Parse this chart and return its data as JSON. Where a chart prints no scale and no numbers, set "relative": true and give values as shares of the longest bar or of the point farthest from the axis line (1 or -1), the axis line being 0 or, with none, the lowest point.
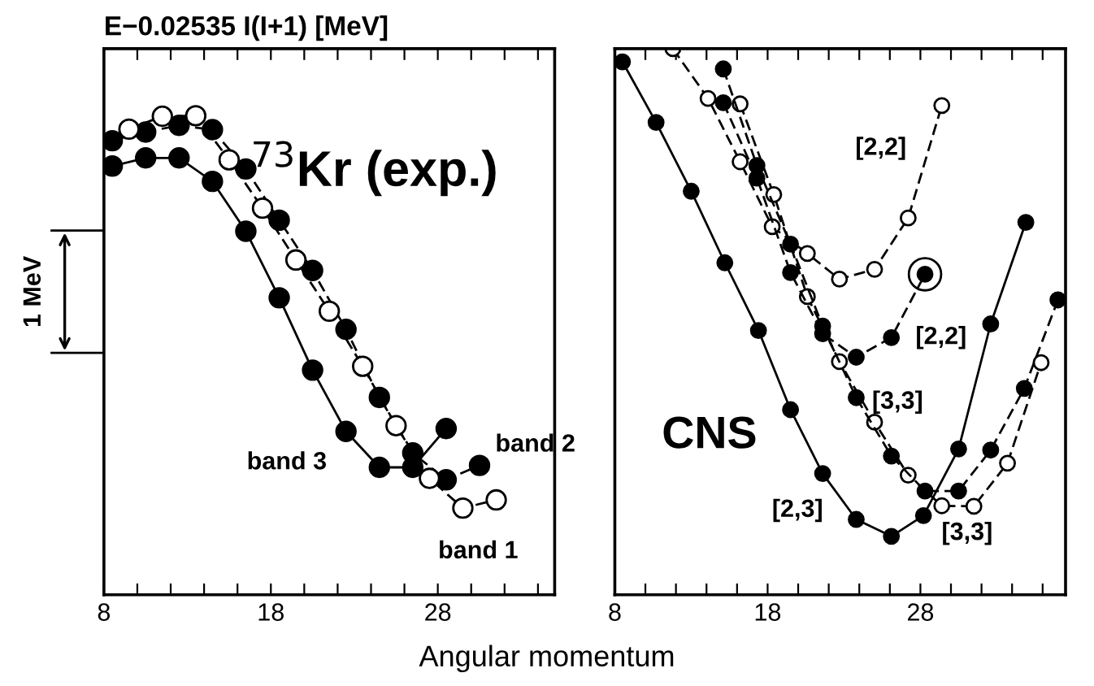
{
  "chart_data": [
    {
      "type": "line",
      "relative": true,
      "ylabel": "E−0.02535 I(I+1) [MeV]",
      "xlabel": "Angular momentum",
      "xlim": [
        8,
        35
      ],
      "xticks": [
        8,
        {
          "value": 10,
          "label": null
        },
        {
          "value": 12,
          "label": null
        },
        {
          "value": 14,
          "label": null
        },
        {
          "value": 16,
          "label": null
        },
        18,
        {
          "value": 20,
          "label": null
        },
        {
          "value": 22,
          "label": null
        },
        {
          "value": 24,
          "label": null
        },
        {
          "value": 26,
          "label": null
        },
        28,
        {
          "value": 30,
          "label": null
        },
        {
          "value": 32,
          "label": null
        },
        {
          "value": 34,
          "label": null
        }
      ],
      "tick_labels": "x",
      "marker": "circle",
      "grid": false,
      "legend": false,
      "annotations": [
        "$^{73}$Kr (exp.)",
        "1 MeV"
      ],
      "series": [
        {
          "name": "band 3",
          "color": "#000000",
          "line_style": "solid",
          "x": [
            8.5,
            10.5,
            12.5,
            14.5,
            16.5,
            18.5,
            20.5,
            22.5,
            24.5,
            26.5,
            28.5
          ],
          "values": [
            0.895,
            0.912,
            0.912,
            0.863,
            0.759,
            0.62,
            0.469,
            0.341,
            0.266,
            0.266,
            0.347
          ]
        },
        {
          "name": "band 2",
          "color": "#000000",
          "line_style": "dashed",
          "x": [
            8.5,
            10.5,
            12.5,
            14.5,
            16.5,
            18.5,
            20.5,
            22.5,
            24.5,
            26.5,
            28.5,
            30.5
          ],
          "values": [
            0.948,
            0.966,
            0.98,
            0.971,
            0.889,
            0.782,
            0.677,
            0.554,
            0.412,
            0.296,
            0.24,
            0.27
          ]
        },
        {
          "name": "band 1",
          "color": "#ffffff",
          "line_style": "dashed",
          "x": [
            9.5,
            11.5,
            13.5,
            15.5,
            17.5,
            19.5,
            21.5,
            23.5,
            25.5,
            27.5,
            29.5,
            31.5
          ],
          "values": [
            0.972,
            0.999,
            1.0,
            0.908,
            0.807,
            0.699,
            0.592,
            0.477,
            0.353,
            0.243,
            0.181,
            0.198
          ]
        }
      ]
    },
    {
      "type": "line",
      "relative": true,
      "xlim": [
        8,
        37.5
      ],
      "xticks": [
        8,
        {
          "value": 10,
          "label": null
        },
        {
          "value": 12,
          "label": null
        },
        {
          "value": 14,
          "label": null
        },
        {
          "value": 16,
          "label": null
        },
        18,
        {
          "value": 20,
          "label": null
        },
        {
          "value": 22,
          "label": null
        },
        {
          "value": 24,
          "label": null
        },
        {
          "value": 26,
          "label": null
        },
        28,
        {
          "value": 30,
          "label": null
        },
        {
          "value": 32,
          "label": null
        },
        {
          "value": 34,
          "label": null
        },
        {
          "value": 36,
          "label": null
        }
      ],
      "tick_labels": "x",
      "marker": "circle",
      "grid": false,
      "legend": false,
      "annotations": [
        "CNS"
      ],
      "series": [
        {
          "name": "[2,3]",
          "color": "#000000",
          "line_style": "solid",
          "x": [
            8.5,
            10.7,
            13.0,
            15.2,
            17.4,
            19.5,
            21.6,
            23.8,
            26.1,
            28.2,
            30.5,
            32.6,
            34.9
          ],
          "values": [
            0.976,
            0.865,
            0.739,
            0.608,
            0.484,
            0.339,
            0.222,
            0.138,
            0.107,
            0.145,
            0.267,
            0.496,
            0.682
          ]
        },
        {
          "name": "[2,2]",
          "color": "#ffffff",
          "line_style": "dashed",
          "x": [
            11.8,
            14.1,
            16.2,
            18.3,
            20.6,
            22.7,
            25.0,
            27.2,
            29.4
          ],
          "values": [
            1.0,
            0.909,
            0.793,
            0.674,
            0.625,
            0.578,
            0.596,
            0.69,
            0.896
          ]
        },
        {
          "name": "[3,3]",
          "color": "#ffffff",
          "line_style": "dashed",
          "x": [
            16.2,
            18.4,
            20.6,
            22.7,
            25.0,
            27.2,
            29.4,
            31.5,
            33.7,
            35.9
          ],
          "values": [
            0.899,
            0.733,
            0.546,
            0.427,
            0.316,
            0.219,
            0.163,
            0.162,
            0.241,
            0.425
          ]
        },
        {
          "name": "[2,2]",
          "color": "#000000",
          "line_style": "dashed",
          "x": [
            15.1,
            17.3,
            19.5,
            21.6,
            23.8,
            26.1,
            28.3
          ],
          "values": [
            0.901,
            0.763,
            0.59,
            0.478,
            0.435,
            0.471,
            0.587
          ]
        },
        {
          "name": "[3,3]",
          "color": "#000000",
          "line_style": "dashed",
          "x": [
            15.1,
            17.3,
            19.5,
            21.6,
            23.8,
            26.1,
            28.3,
            30.5,
            32.6,
            34.8,
            37.0
          ],
          "values": [
            0.963,
            0.786,
            0.642,
            0.492,
            0.361,
            0.254,
            0.19,
            0.19,
            0.265,
            0.378,
            0.54
          ]
        },
        {
          "type": "scatter",
          "color": "#000000",
          "x": [
            28.3
          ],
          "values": [
            0.587
          ]
        }
      ]
    }
  ]
}
